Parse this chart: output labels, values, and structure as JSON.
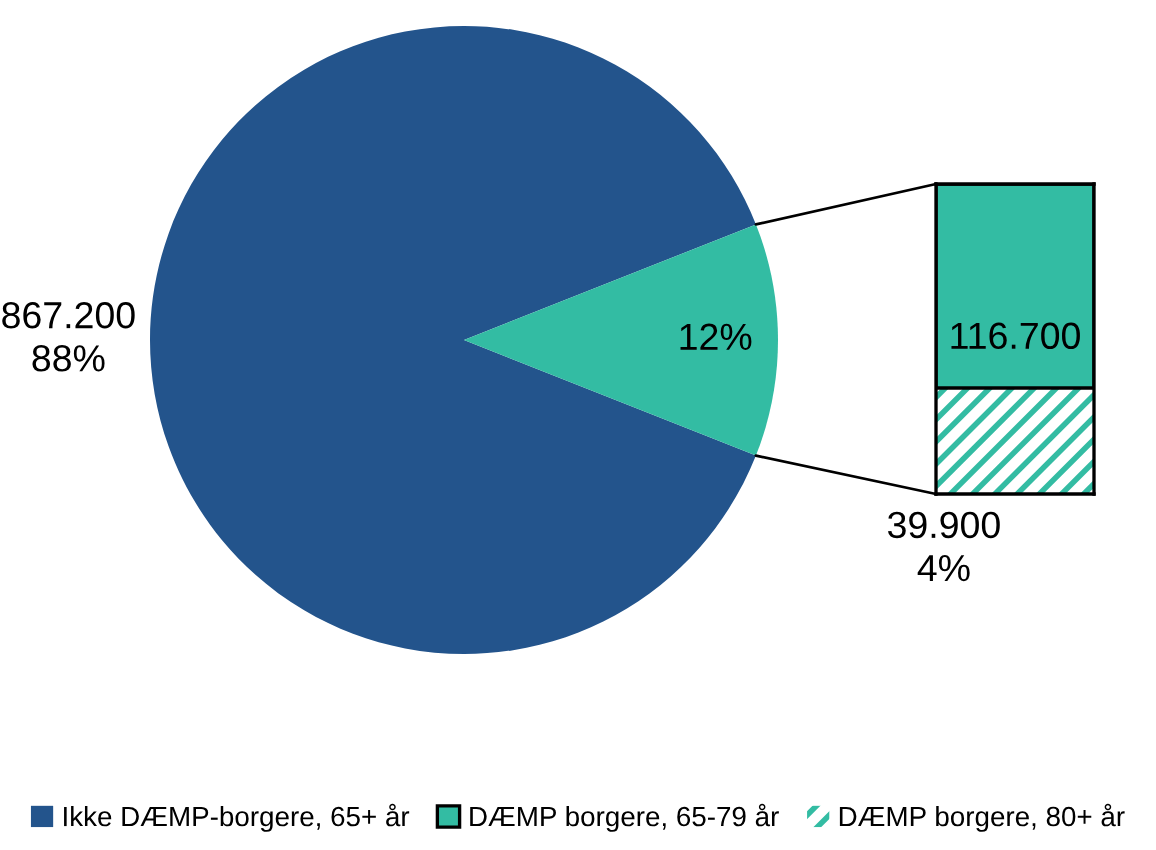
{
  "chart_data": [
    {
      "type": "pie",
      "categories": [
        "Ikke DÆMP-borgere, 65+ år",
        null
      ],
      "values": [
        88,
        12
      ],
      "colors": [
        "#23548c",
        "#33bca3"
      ],
      "value_labels": [
        "867.200\n88%",
        "12%"
      ],
      "legend": "bottom"
    },
    {
      "type": "bar",
      "stacked": true,
      "categories": [
        null
      ],
      "series": [
        {
          "name": "DÆMP borgere, 80+ år",
          "color": "#33bca3",
          "values": [
            39900
          ],
          "value_labels": [
            "39.900\n4%"
          ]
        },
        {
          "name": "DÆMP borgere, 65-79 år",
          "color": "#33bca3",
          "values": [
            76800
          ]
        }
      ],
      "totals": [
        "116.700"
      ],
      "legend": "bottom"
    }
  ]
}
